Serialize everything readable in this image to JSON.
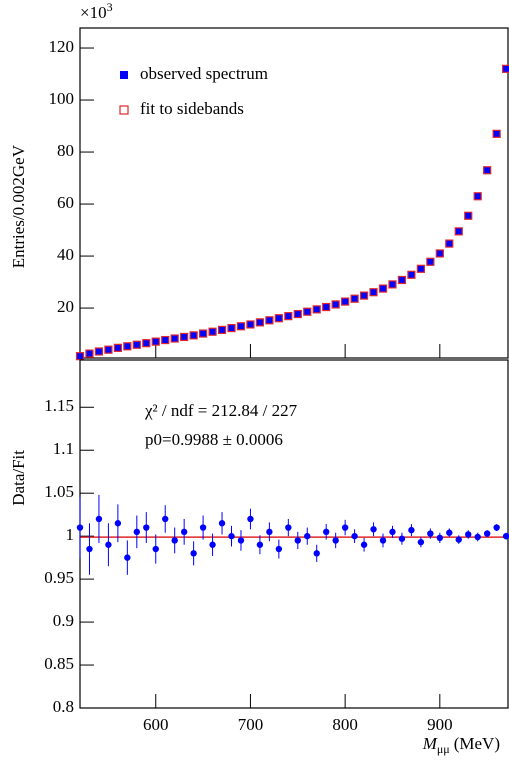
{
  "chart_data": [
    {
      "type": "scatter",
      "y_label": "Entries/0.002GeV",
      "multiplier": {
        "base": "×10",
        "exponent": "3"
      },
      "x": [
        520,
        530,
        540,
        550,
        560,
        570,
        580,
        590,
        600,
        610,
        620,
        630,
        640,
        650,
        660,
        670,
        680,
        690,
        700,
        710,
        720,
        730,
        740,
        750,
        760,
        770,
        780,
        790,
        800,
        810,
        820,
        830,
        840,
        850,
        860,
        870,
        880,
        890,
        900,
        910,
        920,
        930,
        940,
        950,
        960,
        970
      ],
      "series": [
        {
          "name": "observed spectrum",
          "color": "#0000ff",
          "marker": "filled-square",
          "values": [
            1.5,
            2.5,
            3.3,
            4.0,
            4.7,
            5.3,
            5.9,
            6.5,
            7.1,
            7.7,
            8.3,
            8.9,
            9.5,
            10.2,
            10.9,
            11.6,
            12.3,
            13.0,
            13.7,
            14.5,
            15.3,
            16.1,
            16.9,
            17.7,
            18.6,
            19.5,
            20.4,
            21.4,
            22.5,
            23.6,
            24.8,
            26.1,
            27.5,
            29.1,
            30.8,
            32.8,
            35.1,
            37.8,
            41.0,
            44.8,
            49.5,
            55.5,
            63,
            73,
            87,
            112
          ]
        },
        {
          "name": "fit to sidebands",
          "color": "#e0262b",
          "marker": "open-square",
          "values": [
            1.5,
            2.5,
            3.3,
            4.0,
            4.7,
            5.3,
            5.9,
            6.5,
            7.1,
            7.7,
            8.3,
            8.9,
            9.5,
            10.2,
            10.9,
            11.6,
            12.3,
            13.0,
            13.7,
            14.5,
            15.3,
            16.1,
            16.9,
            17.7,
            18.6,
            19.5,
            20.4,
            21.4,
            22.5,
            23.6,
            24.8,
            26.1,
            27.5,
            29.1,
            30.8,
            32.8,
            35.1,
            37.8,
            41.0,
            44.8,
            49.5,
            55.5,
            63,
            73,
            87,
            112
          ]
        }
      ],
      "xlim": [
        520,
        972
      ],
      "xticks": [
        600,
        700,
        800,
        900
      ],
      "ylim": [
        0.8,
        127.7
      ],
      "yticks": [
        20,
        40,
        60,
        80,
        100,
        120
      ]
    },
    {
      "type": "errorbar",
      "y_label": "Data/Fit",
      "x_label": {
        "symbol": "M",
        "subscript": "μμ",
        "unit": "(MeV)"
      },
      "chi2_label": "χ² / ndf = 212.84 / 227",
      "fit_label": "p0=0.9988 ± 0.0006",
      "fit_level": 0.9988,
      "fit_color": "#e0262b",
      "color": "#0000ff",
      "x": [
        520,
        530,
        540,
        550,
        560,
        570,
        580,
        590,
        600,
        610,
        620,
        630,
        640,
        650,
        660,
        670,
        680,
        690,
        700,
        710,
        720,
        730,
        740,
        750,
        760,
        770,
        780,
        790,
        800,
        810,
        820,
        830,
        840,
        850,
        860,
        870,
        880,
        890,
        900,
        910,
        920,
        930,
        940,
        950,
        960,
        970
      ],
      "values": [
        1.01,
        0.985,
        1.02,
        0.99,
        1.015,
        0.975,
        1.005,
        1.01,
        0.985,
        1.02,
        0.995,
        1.005,
        0.98,
        1.01,
        0.99,
        1.015,
        1.0,
        0.995,
        1.02,
        0.99,
        1.005,
        0.985,
        1.01,
        0.995,
        1.0,
        0.98,
        1.005,
        0.995,
        1.01,
        1.0,
        0.99,
        1.008,
        0.995,
        1.005,
        0.997,
        1.007,
        0.993,
        1.003,
        0.998,
        1.004,
        0.996,
        1.002,
        0.999,
        1.003,
        1.01,
        1.0
      ],
      "errors": [
        0.035,
        0.03,
        0.028,
        0.025,
        0.022,
        0.02,
        0.019,
        0.018,
        0.017,
        0.016,
        0.015,
        0.015,
        0.014,
        0.014,
        0.013,
        0.013,
        0.012,
        0.012,
        0.012,
        0.011,
        0.011,
        0.011,
        0.01,
        0.01,
        0.01,
        0.01,
        0.009,
        0.009,
        0.009,
        0.008,
        0.008,
        0.008,
        0.008,
        0.007,
        0.007,
        0.007,
        0.006,
        0.006,
        0.006,
        0.005,
        0.005,
        0.005,
        0.005,
        0.004,
        0.004,
        0.004
      ],
      "xlim": [
        520,
        972
      ],
      "xticks": [
        600,
        700,
        800,
        900
      ],
      "ylim": [
        0.8,
        1.205
      ],
      "yticks": [
        0.8,
        0.85,
        0.9,
        0.95,
        1,
        1.05,
        1.1,
        1.15
      ]
    }
  ]
}
